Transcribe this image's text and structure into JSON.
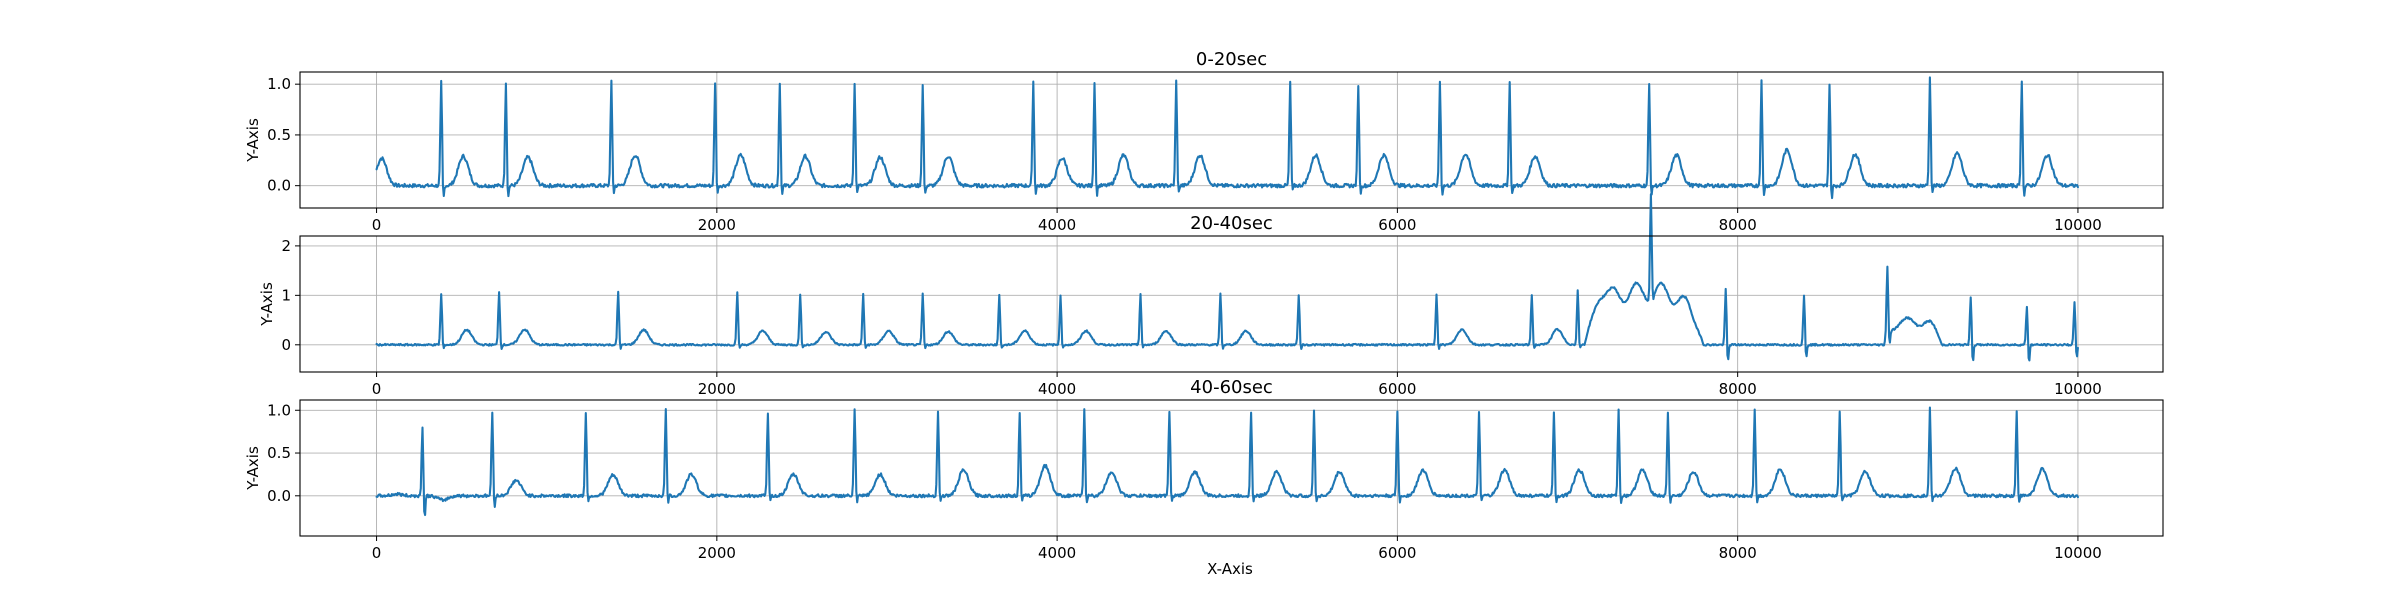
{
  "figure": {
    "xlabel": "X-Axis",
    "line_color": "#1f77b4"
  },
  "chart_data": [
    {
      "type": "line",
      "title": "0-20sec",
      "xlabel": "",
      "ylabel": "Y-Axis",
      "xlim": [
        -450,
        10500
      ],
      "ylim": [
        -0.22,
        1.12
      ],
      "xticks": [
        0,
        2000,
        4000,
        6000,
        8000,
        10000
      ],
      "yticks": [
        0.0,
        0.5,
        1.0
      ],
      "ytick_labels": [
        "0.0",
        "0.5",
        "1.0"
      ],
      "grid": true,
      "series": [
        {
          "baseline": 0.0,
          "r_peaks": [
            380,
            760,
            1380,
            1990,
            2370,
            2810,
            3210,
            3860,
            4220,
            4700,
            5370,
            5770,
            6250,
            6660,
            7480,
            8140,
            8540,
            9130,
            9670
          ],
          "r_amplitudes": [
            1.02,
            1.02,
            1.02,
            1.02,
            1.02,
            1.02,
            0.99,
            1.03,
            1.03,
            1.03,
            1.01,
            1.0,
            1.03,
            1.02,
            1.0,
            1.03,
            1.01,
            1.06,
            1.04
          ],
          "s_amplitudes": [
            -0.15,
            -0.15,
            -0.1,
            -0.1,
            -0.12,
            -0.1,
            -0.12,
            -0.1,
            -0.12,
            -0.1,
            -0.08,
            -0.1,
            -0.12,
            -0.12,
            -0.12,
            -0.12,
            -0.17,
            -0.1,
            -0.14
          ],
          "t_waves": [
            [
              30,
              0.27
            ],
            [
              510,
              0.29
            ],
            [
              890,
              0.28
            ],
            [
              1520,
              0.3
            ],
            [
              2140,
              0.3
            ],
            [
              2520,
              0.29
            ],
            [
              2960,
              0.28
            ],
            [
              3360,
              0.29
            ],
            [
              4030,
              0.27
            ],
            [
              4390,
              0.3
            ],
            [
              4840,
              0.3
            ],
            [
              5520,
              0.3
            ],
            [
              5920,
              0.3
            ],
            [
              6400,
              0.31
            ],
            [
              6810,
              0.29
            ],
            [
              7640,
              0.3
            ],
            [
              8290,
              0.35
            ],
            [
              8690,
              0.31
            ],
            [
              9290,
              0.32
            ],
            [
              9820,
              0.3
            ]
          ],
          "x_end": 10000
        }
      ]
    },
    {
      "type": "line",
      "title": "20-40sec",
      "xlabel": "",
      "ylabel": "Y-Axis",
      "xlim": [
        -450,
        10500
      ],
      "ylim": [
        -0.55,
        2.2
      ],
      "xticks": [
        0,
        2000,
        4000,
        6000,
        8000,
        10000
      ],
      "yticks": [
        0,
        1,
        2
      ],
      "ytick_labels": [
        "0",
        "1",
        "2"
      ],
      "grid": true,
      "series": [
        {
          "baseline": 0.0,
          "r_peaks": [
            380,
            720,
            1420,
            2120,
            2490,
            2860,
            3210,
            3660,
            4020,
            4490,
            4960,
            5420,
            6230,
            6790,
            7060,
            7490,
            7930,
            8390,
            8880,
            9370,
            9700,
            9980
          ],
          "r_amplitudes": [
            1.02,
            1.08,
            1.08,
            1.05,
            1.03,
            1.03,
            1.03,
            1.0,
            0.98,
            1.03,
            1.05,
            1.01,
            1.03,
            1.02,
            1.1,
            2.15,
            1.12,
            0.99,
            1.38,
            0.98,
            0.78,
            0.85
          ],
          "s_amplitudes": [
            -0.1,
            -0.1,
            -0.1,
            -0.1,
            -0.1,
            -0.1,
            -0.1,
            -0.1,
            -0.1,
            -0.1,
            -0.1,
            -0.1,
            -0.1,
            -0.1,
            -0.1,
            -0.1,
            -0.4,
            -0.3,
            -0.3,
            -0.4,
            -0.4,
            -0.3
          ],
          "t_waves": [
            [
              530,
              0.3
            ],
            [
              870,
              0.31
            ],
            [
              1570,
              0.3
            ],
            [
              2270,
              0.28
            ],
            [
              2640,
              0.26
            ],
            [
              3010,
              0.28
            ],
            [
              3360,
              0.27
            ],
            [
              3810,
              0.28
            ],
            [
              4170,
              0.28
            ],
            [
              4640,
              0.28
            ],
            [
              5110,
              0.28
            ],
            [
              6380,
              0.31
            ],
            [
              6940,
              0.31
            ],
            [
              7190,
              0.3
            ]
          ],
          "artifacts": [
            [
              7100,
              7800,
              1.25
            ],
            [
              8860,
              9200,
              0.55
            ]
          ],
          "x_end": 10000
        }
      ]
    },
    {
      "type": "line",
      "title": "40-60sec",
      "xlabel": "X-Axis",
      "ylabel": "Y-Axis",
      "xlim": [
        -450,
        10500
      ],
      "ylim": [
        -0.47,
        1.12
      ],
      "xticks": [
        0,
        2000,
        4000,
        6000,
        8000,
        10000
      ],
      "yticks": [
        0.0,
        0.5,
        1.0
      ],
      "ytick_labels": [
        "0.0",
        "0.5",
        "1.0"
      ],
      "grid": true,
      "series": [
        {
          "baseline": 0.0,
          "r_peaks": [
            270,
            680,
            1230,
            1700,
            2300,
            2810,
            3300,
            3780,
            4160,
            4660,
            5140,
            5510,
            6000,
            6480,
            6920,
            7300,
            7590,
            8100,
            8600,
            9130,
            9640
          ],
          "r_amplitudes": [
            0.8,
            0.98,
            0.98,
            1.0,
            0.98,
            1.0,
            0.99,
            0.98,
            1.0,
            1.0,
            0.99,
            1.01,
            0.98,
            0.99,
            0.99,
            1.0,
            0.98,
            1.02,
            1.0,
            1.02,
            0.98
          ],
          "s_amplitudes": [
            -0.3,
            -0.16,
            -0.1,
            -0.1,
            -0.1,
            -0.1,
            -0.1,
            -0.1,
            -0.1,
            -0.1,
            -0.1,
            -0.1,
            -0.1,
            -0.1,
            -0.1,
            -0.1,
            -0.1,
            -0.1,
            -0.1,
            -0.1,
            -0.1
          ],
          "t_waves": [
            [
              120,
              0.02
            ],
            [
              390,
              -0.05
            ],
            [
              820,
              0.18
            ],
            [
              1390,
              0.24
            ],
            [
              1850,
              0.25
            ],
            [
              2450,
              0.25
            ],
            [
              2960,
              0.25
            ],
            [
              3450,
              0.3
            ],
            [
              3930,
              0.35
            ],
            [
              4320,
              0.28
            ],
            [
              4810,
              0.28
            ],
            [
              5290,
              0.28
            ],
            [
              5660,
              0.28
            ],
            [
              6150,
              0.3
            ],
            [
              6630,
              0.3
            ],
            [
              7070,
              0.3
            ],
            [
              7440,
              0.3
            ],
            [
              7740,
              0.28
            ],
            [
              8250,
              0.31
            ],
            [
              8750,
              0.28
            ],
            [
              9280,
              0.32
            ],
            [
              9790,
              0.31
            ]
          ],
          "x_end": 10000
        }
      ]
    }
  ]
}
